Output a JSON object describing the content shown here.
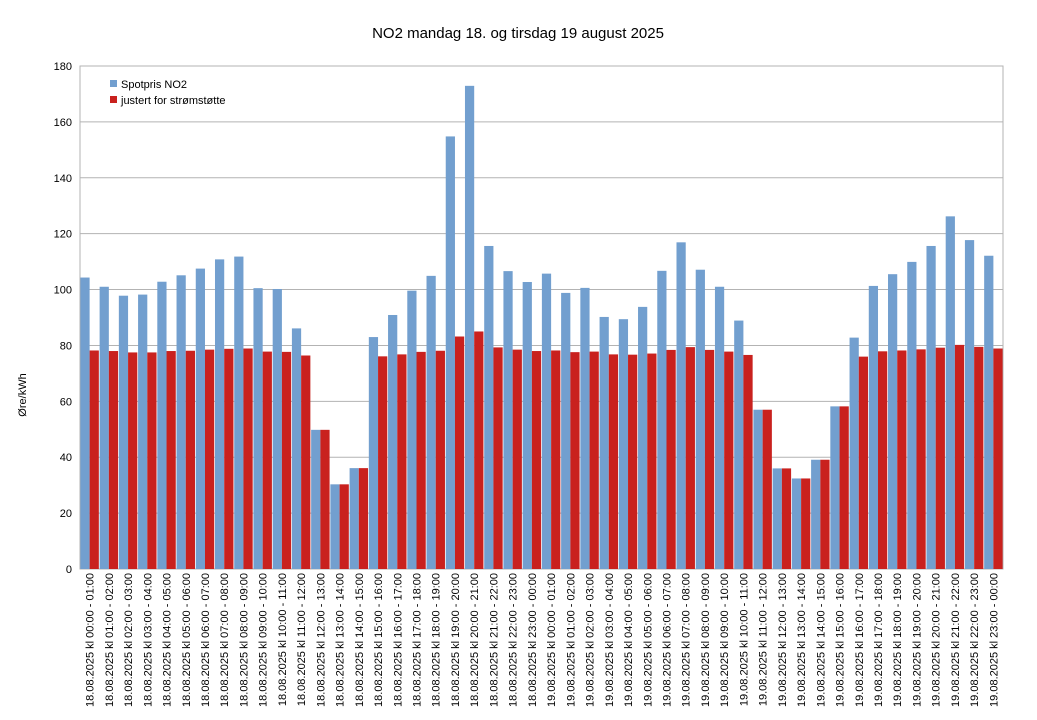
{
  "chart_data": {
    "type": "bar",
    "title": "NO2 mandag 18. og tirsdag 19 august 2025",
    "y_label": "Øre/kWh",
    "categories": [
      "18.08.2025 kl 00:00 - 01:00",
      "18.08.2025 kl 01:00 - 02:00",
      "18.08.2025 kl 02:00 - 03:00",
      "18.08.2025 kl 03:00 - 04:00",
      "18.08.2025 kl 04:00 - 05:00",
      "18.08.2025 kl 05:00 - 06:00",
      "18.08.2025 kl 06:00 - 07:00",
      "18.08.2025 kl 07:00 - 08:00",
      "18.08.2025 kl 08:00 - 09:00",
      "18.08.2025 kl 09:00 - 10:00",
      "18.08.2025 kl 10:00 - 11:00",
      "18.08.2025 kl 11:00 - 12:00",
      "18.08.2025 kl 12:00 - 13:00",
      "18.08.2025 kl 13:00 - 14:00",
      "18.08.2025 kl 14:00 - 15:00",
      "18.08.2025 kl 15:00 - 16:00",
      "18.08.2025 kl 16:00 - 17:00",
      "18.08.2025 kl 17:00 - 18:00",
      "18.08.2025 kl 18:00 - 19:00",
      "18.08.2025 kl 19:00 - 20:00",
      "18.08.2025 kl 20:00 - 21:00",
      "18.08.2025 kl 21:00 - 22:00",
      "18.08.2025 kl 22:00 - 23:00",
      "18.08.2025 kl 23:00 - 00:00",
      "19.08.2025 kl 00:00 - 01:00",
      "19.08.2025 kl 01:00 - 02:00",
      "19.08.2025 kl 02:00 - 03:00",
      "19.08.2025 kl 03:00 - 04:00",
      "19.08.2025 kl 04:00 - 05:00",
      "19.08.2025 kl 05:00 - 06:00",
      "19.08.2025 kl 06:00 - 07:00",
      "19.08.2025 kl 07:00 - 08:00",
      "19.08.2025 kl 08:00 - 09:00",
      "19.08.2025 kl 09:00 - 10:00",
      "19.08.2025 kl 10:00 - 11:00",
      "19.08.2025 kl 11:00 - 12:00",
      "19.08.2025 kl 12:00 - 13:00",
      "19.08.2025 kl 13:00 - 14:00",
      "19.08.2025 kl 14:00 - 15:00",
      "19.08.2025 kl 15:00 - 16:00",
      "19.08.2025 kl 16:00 - 17:00",
      "19.08.2025 kl 17:00 - 18:00",
      "19.08.2025 kl 18:00 - 19:00",
      "19.08.2025 kl 19:00 - 20:00",
      "19.08.2025 kl 20:00 - 21:00",
      "19.08.2025 kl 21:00 - 22:00",
      "19.08.2025 kl 22:00 - 23:00",
      "19.08.2025 kl 23:00 - 00:00"
    ],
    "series": [
      {
        "name": "Spotpris NO2",
        "color": "#729fcf",
        "values": [
          104.3,
          101,
          97.8,
          98.2,
          102.8,
          105.1,
          107.5,
          110.8,
          111.8,
          100.5,
          100.2,
          86.1,
          49.8,
          30.3,
          36.1,
          83,
          90.9,
          99.6,
          104.9,
          154.8,
          172.9,
          115.6,
          106.6,
          102.7,
          105.7,
          98.8,
          100.6,
          90.2,
          89.4,
          93.8,
          106.7,
          116.9,
          107.1,
          101,
          88.9,
          57,
          36,
          32.4,
          39.1,
          58.2,
          82.8,
          101.3,
          105.5,
          109.9,
          115.6,
          126.2,
          117.7,
          112.1
        ]
      },
      {
        "name": "justert for strømstøtte",
        "color": "#c9211e",
        "values": [
          78.2,
          78,
          77.5,
          77.5,
          78,
          78.1,
          78.5,
          78.8,
          78.9,
          77.8,
          77.7,
          76.4,
          49.8,
          30.3,
          36.1,
          76.1,
          76.8,
          77.7,
          78.1,
          83.2,
          85,
          79.3,
          78.5,
          78,
          78.2,
          77.6,
          77.8,
          76.8,
          76.7,
          77.1,
          78.4,
          79.4,
          78.4,
          77.8,
          76.6,
          57,
          36,
          32.4,
          39.1,
          58.2,
          76,
          77.9,
          78.2,
          78.6,
          79.2,
          80.2,
          79.5,
          78.9
        ]
      }
    ],
    "ylim": [
      0,
      180
    ],
    "yticks": [
      0,
      20,
      40,
      60,
      80,
      100,
      120,
      140,
      160,
      180
    ],
    "grid": true,
    "legend": "top-left"
  }
}
